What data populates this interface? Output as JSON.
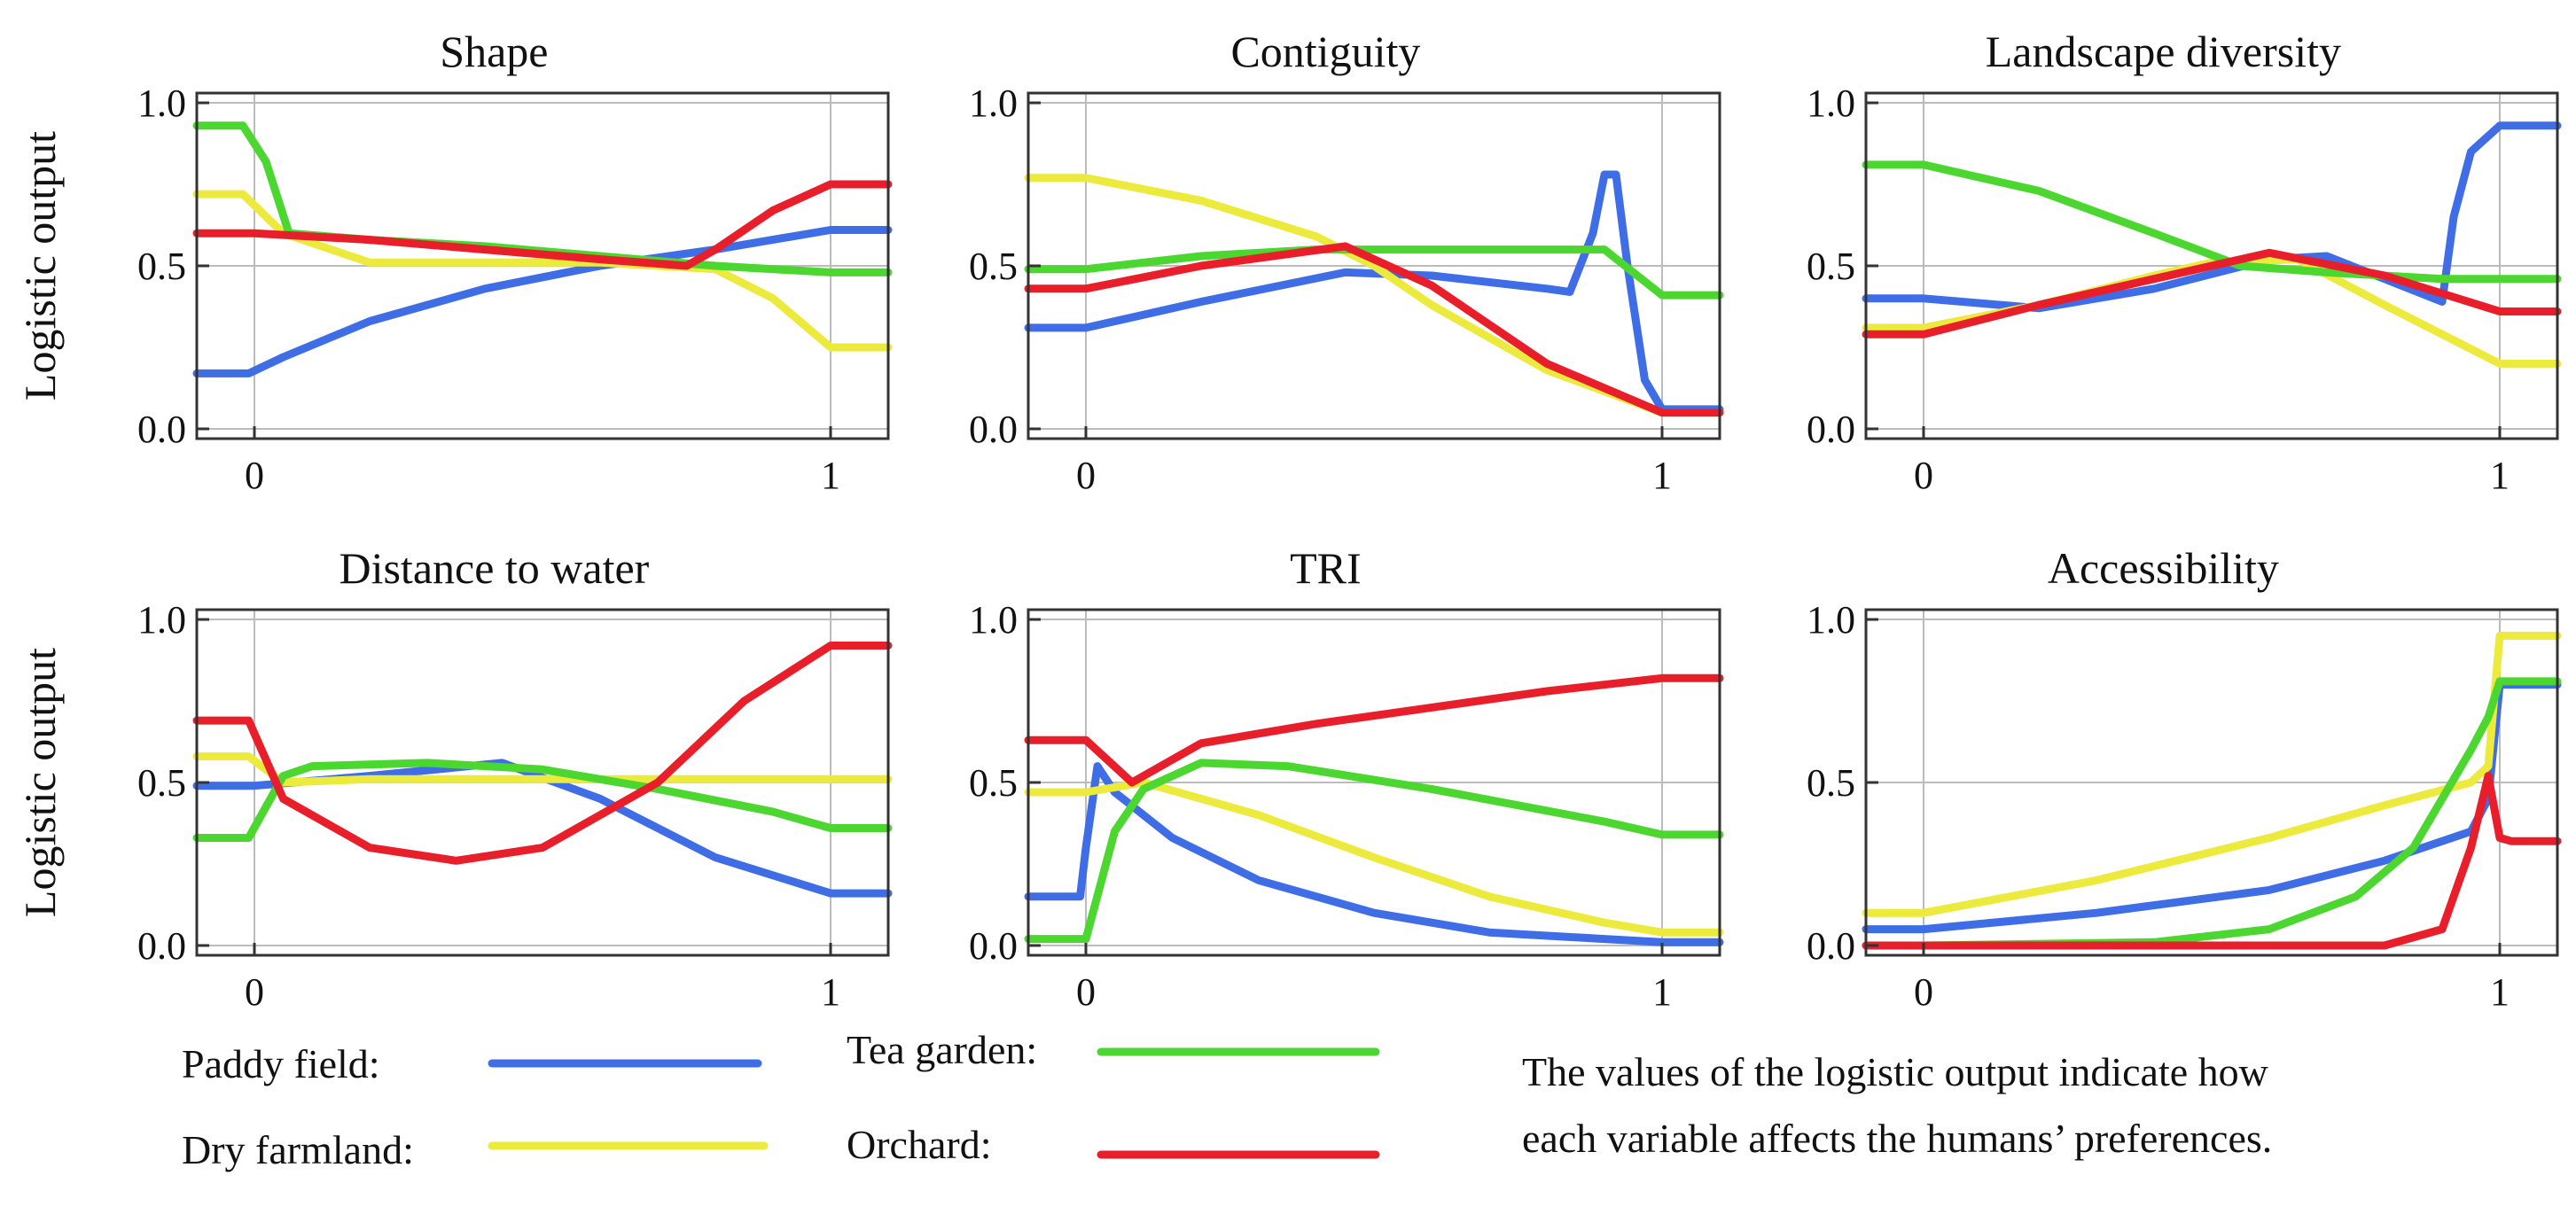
{
  "colors": {
    "Paddy field": "#3f6de6",
    "Dry farmland": "#ecea3c",
    "Tea garden": "#4bd630",
    "Orchard": "#e81e2a"
  },
  "legend": [
    {
      "name": "Paddy field:"
    },
    {
      "name": "Tea garden:"
    },
    {
      "name": "Dry farmland:"
    },
    {
      "name": "Orchard:"
    }
  ],
  "note": {
    "lines": [
      "The values of the logistic output indicate how",
      "each variable affects the humans’ preferences."
    ]
  },
  "chart_data": [
    {
      "type": "line",
      "title": "Shape",
      "ylabel": "Logistic output",
      "xlim": [
        -0.1,
        1.1
      ],
      "ylim": [
        -0.03,
        1.03
      ],
      "xticks": [
        0,
        1
      ],
      "yticks": [
        0.0,
        0.5,
        1.0
      ],
      "ytick_labels": [
        "0.0",
        "0.5",
        "1.0"
      ],
      "grid": true,
      "series": [
        {
          "key": "Paddy field",
          "x": [
            -0.1,
            -0.01,
            0.05,
            0.2,
            0.4,
            0.6,
            0.8,
            1.0,
            1.1
          ],
          "y": [
            0.17,
            0.17,
            0.22,
            0.33,
            0.43,
            0.5,
            0.55,
            0.61,
            0.61
          ]
        },
        {
          "key": "Dry farmland",
          "x": [
            -0.1,
            -0.02,
            0.05,
            0.2,
            0.4,
            0.6,
            0.8,
            0.9,
            1.0,
            1.1
          ],
          "y": [
            0.72,
            0.72,
            0.6,
            0.51,
            0.51,
            0.51,
            0.49,
            0.4,
            0.25,
            0.25
          ]
        },
        {
          "key": "Tea garden",
          "x": [
            -0.1,
            -0.02,
            0.02,
            0.06,
            0.2,
            0.4,
            0.6,
            0.8,
            1.0,
            1.1
          ],
          "y": [
            0.93,
            0.93,
            0.82,
            0.6,
            0.58,
            0.56,
            0.53,
            0.5,
            0.48,
            0.48
          ]
        },
        {
          "key": "Orchard",
          "x": [
            -0.1,
            0.0,
            0.2,
            0.4,
            0.6,
            0.75,
            0.8,
            0.9,
            1.0,
            1.1
          ],
          "y": [
            0.6,
            0.6,
            0.58,
            0.55,
            0.52,
            0.5,
            0.55,
            0.67,
            0.75,
            0.75
          ]
        }
      ]
    },
    {
      "type": "line",
      "title": "Contiguity",
      "ylabel": "",
      "xlim": [
        -0.1,
        1.1
      ],
      "ylim": [
        -0.03,
        1.03
      ],
      "xticks": [
        0,
        1
      ],
      "yticks": [
        0.0,
        0.5,
        1.0
      ],
      "ytick_labels": [
        "0.0",
        "0.5",
        "1.0"
      ],
      "grid": true,
      "series": [
        {
          "key": "Paddy field",
          "x": [
            -0.1,
            0.0,
            0.2,
            0.45,
            0.6,
            0.8,
            0.84,
            0.88,
            0.9,
            0.92,
            0.94,
            0.97,
            1.0,
            1.1
          ],
          "y": [
            0.31,
            0.31,
            0.39,
            0.48,
            0.47,
            0.43,
            0.42,
            0.6,
            0.78,
            0.78,
            0.5,
            0.15,
            0.06,
            0.06
          ]
        },
        {
          "key": "Dry farmland",
          "x": [
            -0.1,
            0.0,
            0.2,
            0.4,
            0.5,
            0.6,
            0.8,
            1.0,
            1.1
          ],
          "y": [
            0.77,
            0.77,
            0.7,
            0.59,
            0.5,
            0.38,
            0.18,
            0.05,
            0.05
          ]
        },
        {
          "key": "Tea garden",
          "x": [
            -0.1,
            0.0,
            0.2,
            0.4,
            0.6,
            0.8,
            0.85,
            0.9,
            0.95,
            1.0,
            1.1
          ],
          "y": [
            0.49,
            0.49,
            0.53,
            0.55,
            0.55,
            0.55,
            0.55,
            0.55,
            0.48,
            0.41,
            0.41
          ]
        },
        {
          "key": "Orchard",
          "x": [
            -0.1,
            0.0,
            0.2,
            0.45,
            0.6,
            0.8,
            1.0,
            1.1
          ],
          "y": [
            0.43,
            0.43,
            0.5,
            0.56,
            0.44,
            0.2,
            0.05,
            0.05
          ]
        }
      ]
    },
    {
      "type": "line",
      "title": "Landscape diversity",
      "ylabel": "",
      "xlim": [
        -0.1,
        1.1
      ],
      "ylim": [
        -0.03,
        1.03
      ],
      "xticks": [
        0,
        1
      ],
      "yticks": [
        0.0,
        0.5,
        1.0
      ],
      "ytick_labels": [
        "0.0",
        "0.5",
        "1.0"
      ],
      "grid": true,
      "series": [
        {
          "key": "Paddy field",
          "x": [
            -0.1,
            0.0,
            0.2,
            0.4,
            0.6,
            0.7,
            0.9,
            0.92,
            0.95,
            1.0,
            1.1
          ],
          "y": [
            0.4,
            0.4,
            0.37,
            0.43,
            0.52,
            0.53,
            0.39,
            0.65,
            0.85,
            0.93,
            0.93
          ]
        },
        {
          "key": "Dry farmland",
          "x": [
            -0.1,
            0.0,
            0.2,
            0.4,
            0.5,
            0.65,
            0.8,
            1.0,
            1.1
          ],
          "y": [
            0.31,
            0.31,
            0.38,
            0.47,
            0.51,
            0.52,
            0.38,
            0.2,
            0.2
          ]
        },
        {
          "key": "Tea garden",
          "x": [
            -0.1,
            0.0,
            0.2,
            0.4,
            0.55,
            0.7,
            0.9,
            1.0,
            1.1
          ],
          "y": [
            0.81,
            0.81,
            0.73,
            0.6,
            0.5,
            0.48,
            0.46,
            0.46,
            0.46
          ]
        },
        {
          "key": "Orchard",
          "x": [
            -0.1,
            0.0,
            0.2,
            0.4,
            0.6,
            0.8,
            1.0,
            1.1
          ],
          "y": [
            0.29,
            0.29,
            0.38,
            0.46,
            0.54,
            0.47,
            0.36,
            0.36
          ]
        }
      ]
    },
    {
      "type": "line",
      "title": "Distance to water",
      "ylabel": "Logistic output",
      "xlim": [
        -0.1,
        1.1
      ],
      "ylim": [
        -0.03,
        1.03
      ],
      "xticks": [
        0,
        1
      ],
      "yticks": [
        0.0,
        0.5,
        1.0
      ],
      "ytick_labels": [
        "0.0",
        "0.5",
        "1.0"
      ],
      "grid": true,
      "series": [
        {
          "key": "Paddy field",
          "x": [
            -0.1,
            0.0,
            0.2,
            0.43,
            0.6,
            0.8,
            1.0,
            1.1
          ],
          "y": [
            0.49,
            0.49,
            0.52,
            0.56,
            0.45,
            0.27,
            0.16,
            0.16
          ]
        },
        {
          "key": "Dry farmland",
          "x": [
            -0.1,
            -0.01,
            0.05,
            0.2,
            0.5,
            1.0,
            1.1
          ],
          "y": [
            0.58,
            0.58,
            0.5,
            0.51,
            0.51,
            0.51,
            0.51
          ]
        },
        {
          "key": "Tea garden",
          "x": [
            -0.1,
            -0.01,
            0.05,
            0.1,
            0.3,
            0.5,
            0.7,
            0.9,
            1.0,
            1.1
          ],
          "y": [
            0.33,
            0.33,
            0.52,
            0.55,
            0.56,
            0.54,
            0.48,
            0.41,
            0.36,
            0.36
          ]
        },
        {
          "key": "Orchard",
          "x": [
            -0.1,
            -0.01,
            0.05,
            0.2,
            0.35,
            0.5,
            0.7,
            0.85,
            1.0,
            1.1
          ],
          "y": [
            0.69,
            0.69,
            0.45,
            0.3,
            0.26,
            0.3,
            0.5,
            0.75,
            0.92,
            0.92
          ]
        }
      ]
    },
    {
      "type": "line",
      "title": "TRI",
      "ylabel": "",
      "xlim": [
        -0.1,
        1.1
      ],
      "ylim": [
        -0.03,
        1.03
      ],
      "xticks": [
        0,
        1
      ],
      "yticks": [
        0.0,
        0.5,
        1.0
      ],
      "ytick_labels": [
        "0.0",
        "0.5",
        "1.0"
      ],
      "grid": true,
      "series": [
        {
          "key": "Paddy field",
          "x": [
            -0.1,
            -0.01,
            0.0,
            0.02,
            0.05,
            0.15,
            0.3,
            0.5,
            0.7,
            0.9,
            1.0,
            1.1
          ],
          "y": [
            0.15,
            0.15,
            0.3,
            0.55,
            0.47,
            0.33,
            0.2,
            0.1,
            0.04,
            0.02,
            0.01,
            0.01
          ]
        },
        {
          "key": "Dry farmland",
          "x": [
            -0.1,
            0.0,
            0.1,
            0.3,
            0.5,
            0.7,
            0.9,
            1.0,
            1.1
          ],
          "y": [
            0.47,
            0.47,
            0.5,
            0.4,
            0.27,
            0.15,
            0.07,
            0.04,
            0.04
          ]
        },
        {
          "key": "Tea garden",
          "x": [
            -0.1,
            0.0,
            0.05,
            0.1,
            0.2,
            0.35,
            0.6,
            0.9,
            1.0,
            1.1
          ],
          "y": [
            0.02,
            0.02,
            0.35,
            0.48,
            0.56,
            0.55,
            0.48,
            0.38,
            0.34,
            0.34
          ]
        },
        {
          "key": "Orchard",
          "x": [
            -0.1,
            0.0,
            0.08,
            0.2,
            0.4,
            0.6,
            0.8,
            1.0,
            1.1
          ],
          "y": [
            0.63,
            0.63,
            0.5,
            0.62,
            0.68,
            0.73,
            0.78,
            0.82,
            0.82
          ]
        }
      ]
    },
    {
      "type": "line",
      "title": "Accessibility",
      "ylabel": "",
      "xlim": [
        -0.1,
        1.1
      ],
      "ylim": [
        -0.03,
        1.03
      ],
      "xticks": [
        0,
        1
      ],
      "yticks": [
        0.0,
        0.5,
        1.0
      ],
      "ytick_labels": [
        "0.0",
        "0.5",
        "1.0"
      ],
      "grid": true,
      "series": [
        {
          "key": "Paddy field",
          "x": [
            -0.1,
            0.0,
            0.3,
            0.6,
            0.8,
            0.95,
            0.98,
            1.0,
            1.1
          ],
          "y": [
            0.05,
            0.05,
            0.1,
            0.17,
            0.26,
            0.35,
            0.45,
            0.8,
            0.8
          ]
        },
        {
          "key": "Dry farmland",
          "x": [
            -0.1,
            0.0,
            0.3,
            0.6,
            0.8,
            0.95,
            0.98,
            1.0,
            1.1
          ],
          "y": [
            0.1,
            0.1,
            0.2,
            0.33,
            0.43,
            0.5,
            0.55,
            0.95,
            0.95
          ]
        },
        {
          "key": "Tea garden",
          "x": [
            -0.1,
            0.0,
            0.4,
            0.6,
            0.75,
            0.85,
            0.95,
            0.98,
            1.0,
            1.1
          ],
          "y": [
            0.0,
            0.0,
            0.01,
            0.05,
            0.15,
            0.3,
            0.6,
            0.7,
            0.81,
            0.81
          ]
        },
        {
          "key": "Orchard",
          "x": [
            -0.1,
            0.0,
            0.6,
            0.8,
            0.9,
            0.95,
            0.98,
            1.0,
            1.02,
            1.1
          ],
          "y": [
            0.0,
            0.0,
            0.0,
            0.0,
            0.05,
            0.3,
            0.52,
            0.33,
            0.32,
            0.32
          ]
        }
      ]
    }
  ]
}
